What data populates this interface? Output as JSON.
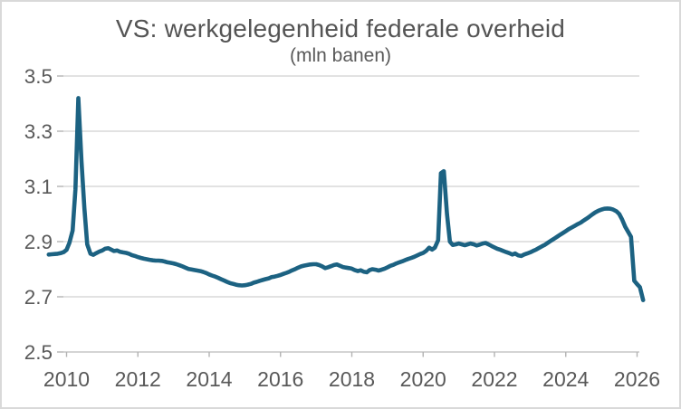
{
  "chart": {
    "title": "VS: werkgelegenheid federale overheid",
    "subtitle": "(mln banen)",
    "colors": {
      "line": "#1c6282",
      "grid": "#d9d9d9",
      "axis": "#cccccc",
      "tick": "#b3b3b3",
      "text": "#595959",
      "title_text": "#545454",
      "frame": "#d9d9d9",
      "background": "#ffffff"
    }
  },
  "chart_data": {
    "type": "line",
    "title": "VS: werkgelegenheid federale overheid",
    "subtitle": "(mln banen)",
    "ylabel": "",
    "xlabel": "",
    "unit": "mln banen",
    "grid": "horizontal",
    "legend": "none",
    "xlim": [
      2009.4,
      2026.45
    ],
    "ylim": [
      2.5,
      3.5
    ],
    "x_ticks": [
      2010,
      2012,
      2014,
      2016,
      2018,
      2020,
      2022,
      2024,
      2026
    ],
    "y_ticks": [
      2.5,
      2.7,
      2.9,
      3.1,
      3.3,
      3.5
    ],
    "series": [
      {
        "name": "werkgelegenheid federale overheid (mln banen)",
        "x_type": "decimal-year-monthly",
        "points": [
          [
            2009.5,
            2.853
          ],
          [
            2009.58,
            2.854
          ],
          [
            2009.67,
            2.855
          ],
          [
            2009.75,
            2.856
          ],
          [
            2009.83,
            2.858
          ],
          [
            2009.92,
            2.862
          ],
          [
            2010.0,
            2.87
          ],
          [
            2010.08,
            2.895
          ],
          [
            2010.17,
            2.94
          ],
          [
            2010.25,
            3.09
          ],
          [
            2010.33,
            3.42
          ],
          [
            2010.42,
            3.19
          ],
          [
            2010.5,
            3.02
          ],
          [
            2010.58,
            2.89
          ],
          [
            2010.67,
            2.856
          ],
          [
            2010.75,
            2.852
          ],
          [
            2010.83,
            2.858
          ],
          [
            2010.92,
            2.864
          ],
          [
            2011.0,
            2.868
          ],
          [
            2011.08,
            2.874
          ],
          [
            2011.17,
            2.876
          ],
          [
            2011.25,
            2.871
          ],
          [
            2011.33,
            2.866
          ],
          [
            2011.42,
            2.868
          ],
          [
            2011.5,
            2.863
          ],
          [
            2011.58,
            2.861
          ],
          [
            2011.67,
            2.859
          ],
          [
            2011.75,
            2.856
          ],
          [
            2011.83,
            2.851
          ],
          [
            2011.92,
            2.848
          ],
          [
            2012.0,
            2.844
          ],
          [
            2012.08,
            2.841
          ],
          [
            2012.17,
            2.838
          ],
          [
            2012.25,
            2.836
          ],
          [
            2012.33,
            2.834
          ],
          [
            2012.42,
            2.832
          ],
          [
            2012.5,
            2.831
          ],
          [
            2012.58,
            2.831
          ],
          [
            2012.67,
            2.83
          ],
          [
            2012.75,
            2.828
          ],
          [
            2012.83,
            2.825
          ],
          [
            2012.92,
            2.823
          ],
          [
            2013.0,
            2.821
          ],
          [
            2013.08,
            2.818
          ],
          [
            2013.17,
            2.814
          ],
          [
            2013.25,
            2.81
          ],
          [
            2013.33,
            2.806
          ],
          [
            2013.42,
            2.801
          ],
          [
            2013.5,
            2.799
          ],
          [
            2013.58,
            2.797
          ],
          [
            2013.67,
            2.795
          ],
          [
            2013.75,
            2.793
          ],
          [
            2013.83,
            2.79
          ],
          [
            2013.92,
            2.786
          ],
          [
            2014.0,
            2.781
          ],
          [
            2014.08,
            2.777
          ],
          [
            2014.17,
            2.773
          ],
          [
            2014.25,
            2.769
          ],
          [
            2014.33,
            2.764
          ],
          [
            2014.42,
            2.759
          ],
          [
            2014.5,
            2.754
          ],
          [
            2014.58,
            2.75
          ],
          [
            2014.67,
            2.747
          ],
          [
            2014.75,
            2.744
          ],
          [
            2014.83,
            2.742
          ],
          [
            2014.92,
            2.741
          ],
          [
            2015.0,
            2.742
          ],
          [
            2015.08,
            2.744
          ],
          [
            2015.17,
            2.747
          ],
          [
            2015.25,
            2.751
          ],
          [
            2015.33,
            2.754
          ],
          [
            2015.42,
            2.758
          ],
          [
            2015.5,
            2.761
          ],
          [
            2015.58,
            2.764
          ],
          [
            2015.67,
            2.767
          ],
          [
            2015.75,
            2.771
          ],
          [
            2015.83,
            2.773
          ],
          [
            2015.92,
            2.776
          ],
          [
            2016.0,
            2.779
          ],
          [
            2016.08,
            2.783
          ],
          [
            2016.17,
            2.787
          ],
          [
            2016.25,
            2.791
          ],
          [
            2016.33,
            2.796
          ],
          [
            2016.42,
            2.801
          ],
          [
            2016.5,
            2.806
          ],
          [
            2016.58,
            2.81
          ],
          [
            2016.67,
            2.813
          ],
          [
            2016.75,
            2.815
          ],
          [
            2016.83,
            2.817
          ],
          [
            2016.92,
            2.818
          ],
          [
            2017.0,
            2.818
          ],
          [
            2017.08,
            2.815
          ],
          [
            2017.17,
            2.81
          ],
          [
            2017.25,
            2.804
          ],
          [
            2017.33,
            2.807
          ],
          [
            2017.42,
            2.811
          ],
          [
            2017.5,
            2.815
          ],
          [
            2017.58,
            2.817
          ],
          [
            2017.67,
            2.812
          ],
          [
            2017.75,
            2.808
          ],
          [
            2017.83,
            2.806
          ],
          [
            2017.92,
            2.804
          ],
          [
            2018.0,
            2.802
          ],
          [
            2018.08,
            2.797
          ],
          [
            2018.17,
            2.793
          ],
          [
            2018.25,
            2.796
          ],
          [
            2018.33,
            2.791
          ],
          [
            2018.42,
            2.789
          ],
          [
            2018.5,
            2.797
          ],
          [
            2018.58,
            2.8
          ],
          [
            2018.67,
            2.798
          ],
          [
            2018.75,
            2.795
          ],
          [
            2018.83,
            2.798
          ],
          [
            2018.92,
            2.802
          ],
          [
            2019.0,
            2.807
          ],
          [
            2019.08,
            2.812
          ],
          [
            2019.17,
            2.816
          ],
          [
            2019.25,
            2.821
          ],
          [
            2019.33,
            2.825
          ],
          [
            2019.42,
            2.829
          ],
          [
            2019.5,
            2.833
          ],
          [
            2019.58,
            2.837
          ],
          [
            2019.67,
            2.841
          ],
          [
            2019.75,
            2.845
          ],
          [
            2019.83,
            2.85
          ],
          [
            2019.92,
            2.855
          ],
          [
            2020.0,
            2.859
          ],
          [
            2020.08,
            2.866
          ],
          [
            2020.17,
            2.878
          ],
          [
            2020.25,
            2.871
          ],
          [
            2020.33,
            2.878
          ],
          [
            2020.42,
            2.905
          ],
          [
            2020.5,
            3.148
          ],
          [
            2020.58,
            3.155
          ],
          [
            2020.67,
            3.0
          ],
          [
            2020.75,
            2.9
          ],
          [
            2020.83,
            2.888
          ],
          [
            2020.92,
            2.89
          ],
          [
            2021.0,
            2.893
          ],
          [
            2021.08,
            2.89
          ],
          [
            2021.17,
            2.887
          ],
          [
            2021.25,
            2.89
          ],
          [
            2021.33,
            2.893
          ],
          [
            2021.42,
            2.89
          ],
          [
            2021.5,
            2.886
          ],
          [
            2021.58,
            2.889
          ],
          [
            2021.67,
            2.893
          ],
          [
            2021.75,
            2.895
          ],
          [
            2021.83,
            2.89
          ],
          [
            2021.92,
            2.884
          ],
          [
            2022.0,
            2.879
          ],
          [
            2022.08,
            2.874
          ],
          [
            2022.17,
            2.87
          ],
          [
            2022.25,
            2.866
          ],
          [
            2022.33,
            2.862
          ],
          [
            2022.42,
            2.858
          ],
          [
            2022.5,
            2.853
          ],
          [
            2022.58,
            2.857
          ],
          [
            2022.67,
            2.85
          ],
          [
            2022.75,
            2.848
          ],
          [
            2022.83,
            2.853
          ],
          [
            2022.92,
            2.857
          ],
          [
            2023.0,
            2.861
          ],
          [
            2023.08,
            2.866
          ],
          [
            2023.17,
            2.871
          ],
          [
            2023.25,
            2.877
          ],
          [
            2023.33,
            2.883
          ],
          [
            2023.42,
            2.889
          ],
          [
            2023.5,
            2.896
          ],
          [
            2023.58,
            2.903
          ],
          [
            2023.67,
            2.91
          ],
          [
            2023.75,
            2.917
          ],
          [
            2023.83,
            2.924
          ],
          [
            2023.92,
            2.931
          ],
          [
            2024.0,
            2.938
          ],
          [
            2024.08,
            2.945
          ],
          [
            2024.17,
            2.951
          ],
          [
            2024.25,
            2.957
          ],
          [
            2024.33,
            2.963
          ],
          [
            2024.42,
            2.969
          ],
          [
            2024.5,
            2.976
          ],
          [
            2024.58,
            2.983
          ],
          [
            2024.67,
            2.991
          ],
          [
            2024.75,
            2.999
          ],
          [
            2024.83,
            3.006
          ],
          [
            2024.92,
            3.012
          ],
          [
            2025.0,
            3.016
          ],
          [
            2025.08,
            3.019
          ],
          [
            2025.17,
            3.02
          ],
          [
            2025.25,
            3.019
          ],
          [
            2025.33,
            3.016
          ],
          [
            2025.42,
            3.01
          ],
          [
            2025.5,
            3.0
          ],
          [
            2025.58,
            2.98
          ],
          [
            2025.67,
            2.953
          ],
          [
            2025.75,
            2.935
          ],
          [
            2025.83,
            2.917
          ],
          [
            2025.92,
            2.758
          ],
          [
            2026.0,
            2.746
          ],
          [
            2026.08,
            2.735
          ],
          [
            2026.17,
            2.688
          ]
        ]
      }
    ]
  }
}
